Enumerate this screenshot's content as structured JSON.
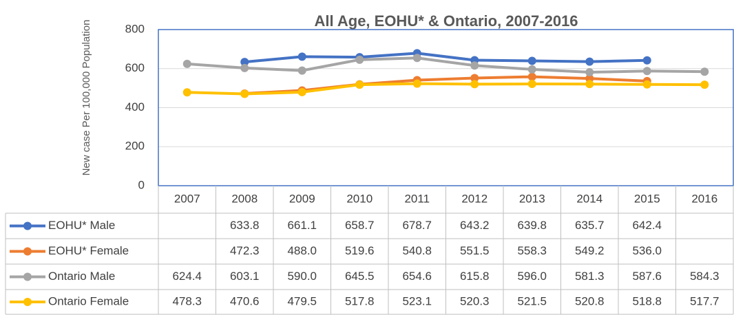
{
  "chart_data": {
    "type": "line",
    "title": "All Age, EOHU* & Ontario, 2007-2016",
    "y_label": "New case Per 100,000 Population",
    "categories": [
      "2007",
      "2008",
      "2009",
      "2010",
      "2011",
      "2012",
      "2013",
      "2014",
      "2015",
      "2016"
    ],
    "ylim": [
      0,
      800
    ],
    "yticks": [
      0,
      200,
      400,
      600,
      800
    ],
    "grid": true,
    "series": [
      {
        "name": "EOHU* Male",
        "color": "#4472c4",
        "values": [
          null,
          633.8,
          661.1,
          658.7,
          678.7,
          643.2,
          639.8,
          635.7,
          642.4,
          null
        ],
        "value_labels": [
          null,
          "633.8",
          "661.1",
          "658.7",
          "678.7",
          "643.2",
          "639.8",
          "635.7",
          "642.4",
          null
        ]
      },
      {
        "name": "EOHU* Female",
        "color": "#ed7d31",
        "values": [
          null,
          472.3,
          488.0,
          519.6,
          540.8,
          551.5,
          558.3,
          549.2,
          536.0,
          null
        ],
        "value_labels": [
          null,
          "472.3",
          "488.0",
          "519.6",
          "540.8",
          "551.5",
          "558.3",
          "549.2",
          "536.0",
          null
        ]
      },
      {
        "name": "Ontario Male",
        "color": "#a5a5a5",
        "values": [
          624.4,
          603.1,
          590.0,
          645.5,
          654.6,
          615.8,
          596.0,
          581.3,
          587.6,
          584.3
        ],
        "value_labels": [
          "624.4",
          "603.1",
          "590.0",
          "645.5",
          "654.6",
          "615.8",
          "596.0",
          "581.3",
          "587.6",
          "584.3"
        ]
      },
      {
        "name": "Ontario Female",
        "color": "#ffc000",
        "values": [
          478.3,
          470.6,
          479.5,
          517.8,
          523.1,
          520.3,
          521.5,
          520.8,
          518.8,
          517.7
        ],
        "value_labels": [
          "478.3",
          "470.6",
          "479.5",
          "517.8",
          "523.1",
          "520.3",
          "521.5",
          "520.8",
          "518.8",
          "517.7"
        ]
      }
    ]
  }
}
